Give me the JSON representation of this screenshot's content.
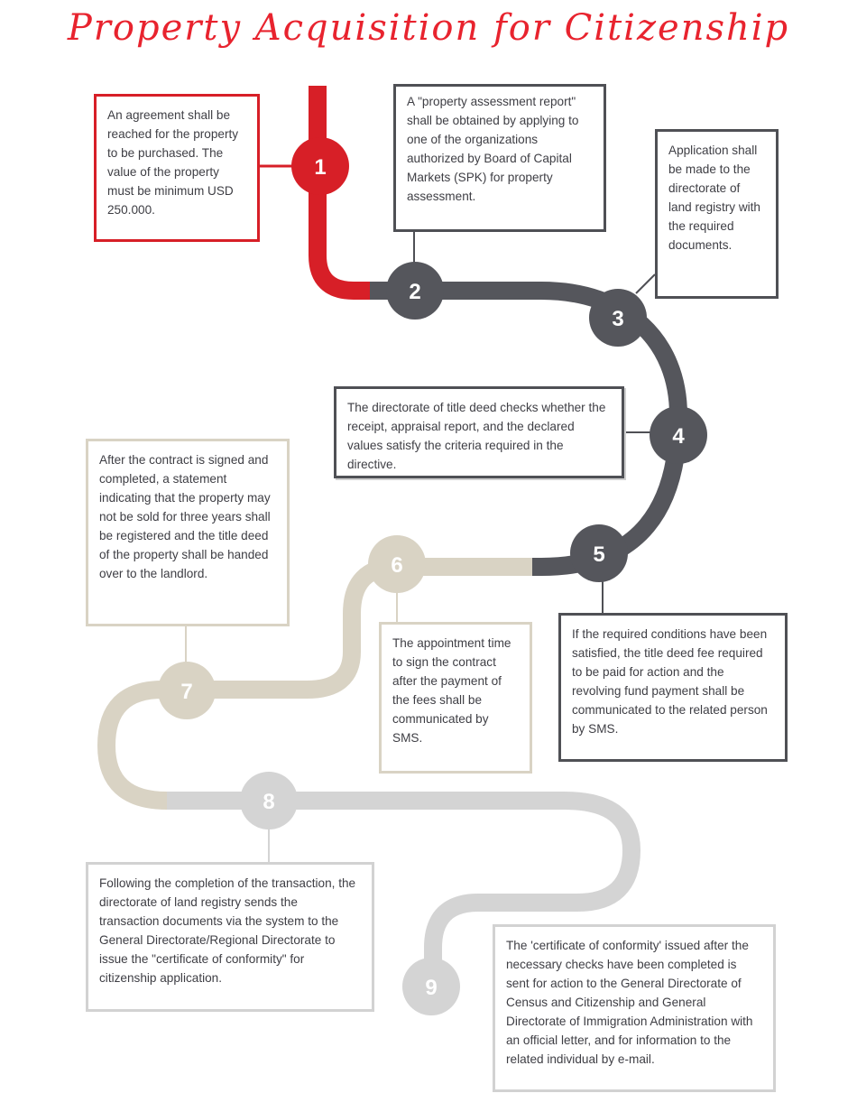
{
  "title": "Property Acquisition for Citizenship",
  "colors": {
    "red": "#d71f27",
    "dark": "#55565c",
    "tan": "#d9d3c4",
    "grey": "#d4d4d4"
  },
  "steps": [
    {
      "number": "1",
      "text": "An agreement shall be reached for the property to be purchased. The value of the property must be minimum USD 250.000."
    },
    {
      "number": "2",
      "text": "A \"property assessment report\" shall be obtained by applying to one of the organizations authorized by Board of Capital Markets (SPK) for property assessment."
    },
    {
      "number": "3",
      "text": "Application shall be made to the directorate of land registry with the required documents."
    },
    {
      "number": "4",
      "text": "The directorate of title deed checks whether the receipt, appraisal report, and the declared values satisfy the criteria required in the directive."
    },
    {
      "number": "5",
      "text": "If the required conditions have been satisfied, the title deed fee required to be paid for action and the revolving fund payment shall be communicated to the related person by SMS."
    },
    {
      "number": "6",
      "text": "The appointment time to sign the contract after the payment of the fees shall be communicated by SMS."
    },
    {
      "number": "7",
      "text": "After the contract is signed and completed, a statement indicating that the property may not be sold for three years shall be registered and the title deed of the property shall be handed over to the landlord."
    },
    {
      "number": "8",
      "text": "Following the completion of the transaction, the directorate of land registry sends the transaction documents via the system to the General Directorate/Regional Directorate to issue the \"certificate of conformity\" for citizenship application."
    },
    {
      "number": "9",
      "text": "The 'certificate of conformity' issued after the necessary checks have been completed is sent for action to the General Directorate of Census and Citizenship and General Directorate of Immigration Administration with an official letter, and for information to the related individual by e-mail."
    }
  ]
}
